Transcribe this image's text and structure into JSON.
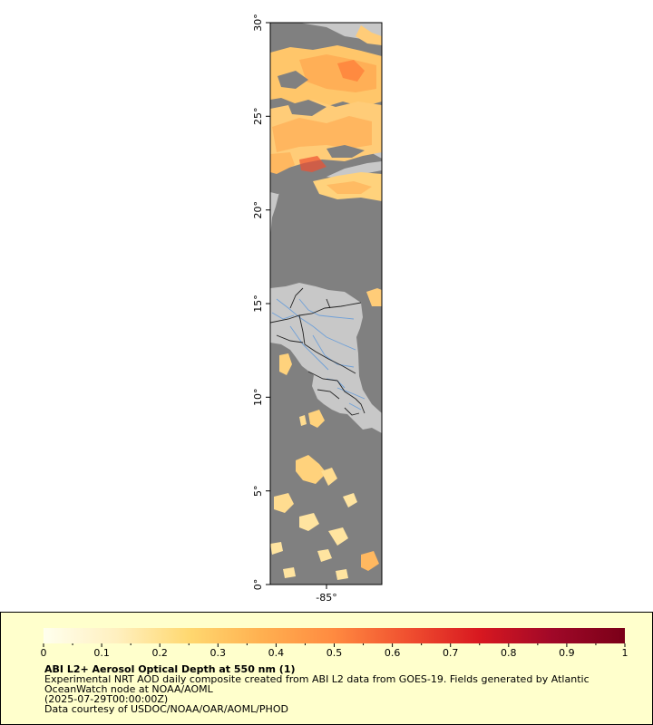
{
  "map": {
    "lat_ticks": [
      "0°",
      "5°",
      "10°",
      "15°",
      "20°",
      "25°",
      "30°"
    ],
    "lon_ticks": [
      "-85°"
    ],
    "colors": {
      "ocean": "#808080",
      "land": "#c8c8c8",
      "river": "#6fa0d8",
      "border": "#222222",
      "frame": "#000000"
    }
  },
  "legend": {
    "title": "ABI L2+ Aerosol Optical Depth at 550 nm (1)",
    "description_line1": "Experimental NRT AOD daily composite created from ABI L2 data from GOES-19. Fields generated by Atlantic",
    "description_line2": "OceanWatch node at NOAA/AOML",
    "time": "(2025-07-29T00:00:00Z)",
    "credit": "Data courtesy of USDOC/NOAA/OAR/AOML/PHOD",
    "ticks": [
      "0",
      "0.1",
      "0.2",
      "0.3",
      "0.4",
      "0.5",
      "0.6",
      "0.7",
      "0.8",
      "0.9",
      "1"
    ],
    "colormap": [
      "#ffffee",
      "#fff0c0",
      "#ffd870",
      "#ffb050",
      "#ff8a40",
      "#f05030",
      "#d81820",
      "#a00828",
      "#7a0018"
    ],
    "background": "#ffffcc"
  }
}
